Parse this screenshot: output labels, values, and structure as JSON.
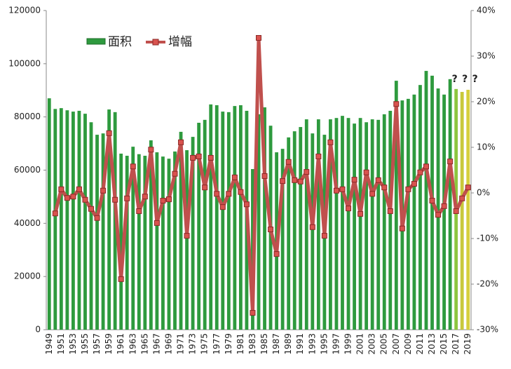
{
  "chart_data": {
    "type": "bar-line",
    "categories": [
      "1949",
      null,
      "1951",
      null,
      "1953",
      null,
      "1955",
      null,
      "1957",
      null,
      "1959",
      null,
      "1961",
      null,
      "1963",
      null,
      "1965",
      null,
      "1967",
      null,
      "1969",
      null,
      "1971",
      null,
      "1973",
      null,
      "1975",
      null,
      "1977",
      null,
      "1979",
      null,
      "1981",
      null,
      "1983",
      null,
      "1985",
      null,
      "1987",
      null,
      "1989",
      null,
      "1991",
      null,
      "1993",
      null,
      "1995",
      null,
      "1997",
      null,
      "1999",
      null,
      "2001",
      null,
      "2003",
      null,
      "2005",
      null,
      "2007",
      null,
      "2009",
      null,
      "2011",
      null,
      "2013",
      null,
      "2015",
      null,
      "2017",
      null,
      "2019"
    ],
    "series": [
      {
        "name": "面积",
        "color": "#2e9a3e",
        "colors": [
          "#2e9a3e",
          "#2e9a3e",
          "#2e9a3e",
          "#2e9a3e",
          "#2e9a3e",
          "#2e9a3e",
          "#2e9a3e",
          "#2e9a3e",
          "#2e9a3e",
          "#2e9a3e",
          "#2e9a3e",
          "#2e9a3e",
          "#2e9a3e",
          "#2e9a3e",
          "#2e9a3e",
          "#2e9a3e",
          "#2e9a3e",
          "#2e9a3e",
          "#2e9a3e",
          "#2e9a3e",
          "#2e9a3e",
          "#2e9a3e",
          "#2e9a3e",
          "#2e9a3e",
          "#2e9a3e",
          "#2e9a3e",
          "#2e9a3e",
          "#2e9a3e",
          "#2e9a3e",
          "#2e9a3e",
          "#2e9a3e",
          "#2e9a3e",
          "#2e9a3e",
          "#2e9a3e",
          "#2e9a3e",
          "#2e9a3e",
          "#2e9a3e",
          "#2e9a3e",
          "#2e9a3e",
          "#2e9a3e",
          "#2e9a3e",
          "#2e9a3e",
          "#2e9a3e",
          "#2e9a3e",
          "#2e9a3e",
          "#2e9a3e",
          "#2e9a3e",
          "#2e9a3e",
          "#2e9a3e",
          "#2e9a3e",
          "#2e9a3e",
          "#2e9a3e",
          "#2e9a3e",
          "#2e9a3e",
          "#2e9a3e",
          "#2e9a3e",
          "#2e9a3e",
          "#2e9a3e",
          "#2e9a3e",
          "#2e9a3e",
          "#2e9a3e",
          "#2e9a3e",
          "#2e9a3e",
          "#2e9a3e",
          "#2e9a3e",
          "#2e9a3e",
          "#2e9a3e",
          "#2e9a3e",
          "#8dc63f",
          "#c8c83a",
          "#d6cf3c"
        ],
        "values": [
          87000,
          83000,
          83300,
          82500,
          82000,
          82300,
          81200,
          78000,
          73300,
          73800,
          82800,
          81800,
          66200,
          65400,
          68800,
          66000,
          65400,
          71200,
          66700,
          65100,
          64300,
          67000,
          74400,
          67500,
          72500,
          77800,
          78900,
          84700,
          84400,
          82000,
          81800,
          84100,
          84400,
          82300,
          60400,
          81000,
          83600,
          76700,
          66700,
          68000,
          72300,
          74600,
          76200,
          79100,
          73800,
          79100,
          73300,
          79100,
          79600,
          80400,
          79600,
          77500,
          79600,
          78000,
          79100,
          78900,
          81000,
          82300,
          93600,
          86200,
          86800,
          88400,
          92000,
          97300,
          95500,
          90700,
          88400,
          94200,
          90500,
          89400,
          90200
        ]
      },
      {
        "name": "增幅",
        "color": "#c0504d",
        "axis": "y2",
        "values": [
          null,
          -4.5,
          0.8,
          -1.1,
          -0.8,
          0.8,
          -1.5,
          -3.5,
          -5.5,
          0.5,
          13.1,
          -1.5,
          -18.9,
          -1.2,
          5.8,
          -4.0,
          -0.8,
          9.5,
          -6.6,
          -1.7,
          -1.4,
          4.2,
          11.1,
          -9.4,
          7.7,
          8.0,
          1.2,
          7.7,
          -0.2,
          -3.1,
          -0.2,
          3.4,
          0.2,
          -2.5,
          -26.3,
          34.0,
          3.7,
          -8.0,
          -13.4,
          2.6,
          6.8,
          2.8,
          2.5,
          4.6,
          -7.5,
          8.0,
          -9.4,
          11.1,
          0.5,
          0.8,
          -3.4,
          2.9,
          -4.6,
          4.5,
          -0.2,
          2.8,
          1.2,
          -4.0,
          19.5,
          -7.8,
          0.8,
          2.0,
          4.5,
          5.8,
          -1.7,
          -4.8,
          -2.9,
          6.9,
          -4.0,
          -1.2,
          1.2
        ]
      }
    ],
    "annotations": [
      "?",
      "?",
      "?"
    ],
    "ylim": [
      0,
      120000
    ],
    "yticks": [
      0,
      20000,
      40000,
      60000,
      80000,
      100000,
      120000
    ],
    "y2lim": [
      -30,
      40
    ],
    "y2ticks": [
      {
        "value": -30,
        "label": "-30%"
      },
      {
        "value": -20,
        "label": "-20%"
      },
      {
        "value": -10,
        "label": "-10%"
      },
      {
        "value": 0,
        "label": "0%"
      },
      {
        "value": 10,
        "label": "10%"
      },
      {
        "value": 20,
        "label": "20%"
      },
      {
        "value": 30,
        "label": "30%"
      },
      {
        "value": 40,
        "label": "40%"
      }
    ],
    "grid": false,
    "legend": "top-left"
  }
}
